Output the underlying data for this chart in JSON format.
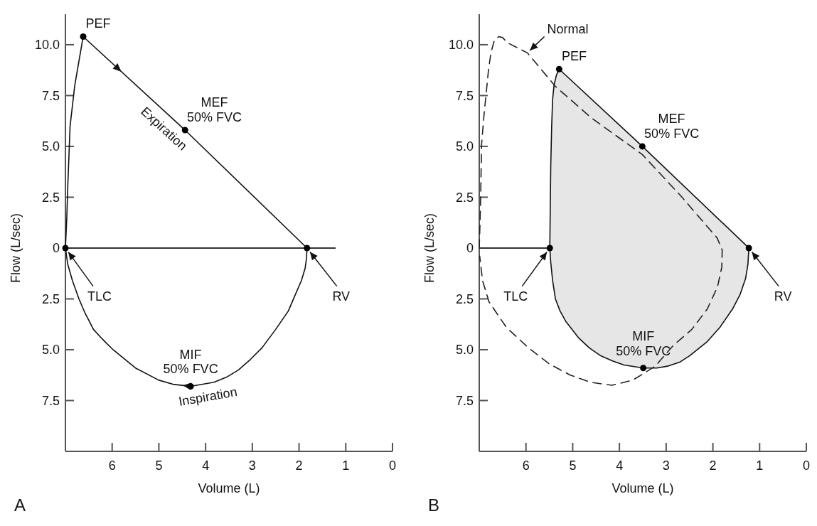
{
  "chart_data": [
    {
      "type": "line",
      "title": "A",
      "xlabel": "Volume (L)",
      "ylabel": "Flow (L/sec)",
      "xlim": [
        7,
        0
      ],
      "xticks": [
        6,
        5,
        4,
        3,
        2,
        1,
        0
      ],
      "ylim": [
        -10,
        11.5
      ],
      "yticks": [
        {
          "value": 10,
          "label": "10.0"
        },
        7.5,
        {
          "value": 5,
          "label": "5.0"
        },
        2.5,
        0,
        {
          "value": -2.5,
          "label": "2.5"
        },
        {
          "value": -5,
          "label": "5.0"
        },
        {
          "value": -7.5,
          "label": "7.5"
        }
      ],
      "ref_lines": [
        {
          "axis": "y",
          "value": 0,
          "color": "#333333"
        }
      ],
      "series": [
        {
          "color": "#111111",
          "x": [
            7,
            6.97,
            6.95,
            6.9,
            6.8,
            6.62,
            4.44,
            1.83
          ],
          "values": [
            0,
            1.5,
            3,
            6,
            8,
            10.4,
            5.8,
            0
          ]
        },
        {
          "color": "#111111",
          "x": [
            1.83,
            1.84,
            1.87,
            1.95,
            2.1,
            2.23,
            2.5,
            2.79,
            3.05,
            3.3,
            3.55,
            3.82,
            4.32,
            4.7,
            5,
            5.5,
            5.98,
            6.2,
            6.4,
            6.58,
            6.71,
            6.85,
            6.95,
            7
          ],
          "values": [
            0,
            -0.5,
            -1,
            -1.6,
            -2.4,
            -3.1,
            -4,
            -4.9,
            -5.5,
            -6,
            -6.35,
            -6.6,
            -6.8,
            -6.7,
            -6.5,
            -5.9,
            -5,
            -4.5,
            -4,
            -3.2,
            -2.5,
            -1.6,
            -0.8,
            0
          ]
        },
        {
          "type": "scatter",
          "marker": "circle",
          "color": "#000000",
          "x": [
            6.62,
            4.44,
            7,
            1.83,
            4.32
          ],
          "values": [
            10.4,
            5.8,
            0,
            0,
            -6.8
          ]
        }
      ],
      "annotations": [
        {
          "text": "PEF",
          "x": 6.62,
          "y": 10.4
        },
        {
          "text": "MEF\n50% FVC",
          "x": 4.44,
          "y": 5.8
        },
        {
          "text": "Expiration",
          "x": 4.7,
          "y": 6.35
        },
        {
          "text": "TLC",
          "x": 7,
          "y": 0
        },
        {
          "text": "RV",
          "x": 1.83,
          "y": 0
        },
        {
          "text": "MIF\n50% FVC",
          "x": 4.32,
          "y": -6.8
        },
        {
          "text": "Inspiration",
          "x": 4,
          "y": -6.67
        }
      ]
    },
    {
      "type": "line",
      "title": "B",
      "xlabel": "Volume (L)",
      "ylabel": "Flow (L/sec)",
      "xlim": [
        7,
        0
      ],
      "xticks": [
        6,
        5,
        4,
        3,
        2,
        1,
        0
      ],
      "ylim": [
        -10,
        11.5
      ],
      "yticks": [
        {
          "value": 10,
          "label": "10.0"
        },
        7.5,
        {
          "value": 5,
          "label": "5.0"
        },
        2.5,
        0,
        {
          "value": -2.5,
          "label": "2.5"
        },
        {
          "value": -5,
          "label": "5.0"
        },
        {
          "value": -7.5,
          "label": "7.5"
        }
      ],
      "ref_lines": [
        {
          "axis": "y",
          "value": 0,
          "color": "#333333"
        }
      ],
      "series": [
        {
          "type": "area",
          "color": "#e6e6e6",
          "x": [
            5.49,
            5.48,
            5.47,
            5.45,
            5.43,
            5.4,
            5.35,
            5.29,
            3.51,
            1.23
          ],
          "values": [
            0,
            2,
            4,
            6,
            7.3,
            8,
            8.5,
            8.8,
            5,
            0
          ]
        },
        {
          "type": "area",
          "color": "#e6e6e6",
          "x": [
            5.49,
            5.47,
            5.43,
            5.37,
            5.27,
            5.15,
            4.88,
            4.65,
            4.4,
            4.15,
            3.9,
            3.49,
            3.2,
            2.95,
            2.7,
            2.5,
            2.12,
            1.85,
            1.58,
            1.42,
            1.3,
            1.25,
            1.23
          ],
          "values": [
            0,
            -0.7,
            -1.6,
            -2.5,
            -3.1,
            -3.6,
            -4.4,
            -4.9,
            -5.3,
            -5.55,
            -5.75,
            -5.9,
            -5.9,
            -5.8,
            -5.6,
            -5.3,
            -4.6,
            -3.9,
            -3,
            -2.3,
            -1.5,
            -0.8,
            0
          ]
        },
        {
          "name": "Normal",
          "line_style": "dashed",
          "color": "#222222",
          "x": [
            7,
            6.98,
            6.97,
            6.95,
            6.9,
            6.85,
            6.8,
            6.75,
            6.68,
            6.58,
            6.5,
            6.4,
            5.97,
            5.37,
            4.6,
            3.51,
            2.68,
            2.1,
            1.91,
            1.8,
            1.81,
            1.9,
            2.12,
            2.45,
            2.85,
            3.23,
            3.5,
            3.72,
            4.16,
            4.62,
            5.05,
            5.5,
            5.95,
            6.42,
            6.79,
            6.93,
            6.96,
            6.99
          ],
          "values": [
            0,
            1.5,
            2.5,
            5.1,
            6.5,
            7.65,
            8.8,
            9.6,
            10.2,
            10.4,
            10.35,
            10.1,
            9.6,
            7.95,
            6.4,
            4.6,
            2.55,
            1,
            0.5,
            -0.1,
            -0.95,
            -1.9,
            -3,
            -4,
            -4.8,
            -5.8,
            -6.2,
            -6.5,
            -6.75,
            -6.6,
            -6.25,
            -5.7,
            -4.9,
            -3.9,
            -2.65,
            -1.6,
            -1,
            -0.4
          ]
        },
        {
          "type": "scatter",
          "marker": "circle",
          "color": "#000000",
          "x": [
            5.29,
            3.51,
            5.49,
            1.23,
            3.49
          ],
          "values": [
            8.8,
            5,
            0,
            0,
            -5.9
          ]
        }
      ],
      "annotations": [
        {
          "text": "PEF",
          "x": 5.29,
          "y": 8.8
        },
        {
          "text": "MEF\n50% FVC",
          "x": 3.51,
          "y": 5
        },
        {
          "text": "TLC",
          "x": 5.49,
          "y": 0
        },
        {
          "text": "RV",
          "x": 1.23,
          "y": 0
        },
        {
          "text": "MIF\n50% FVC",
          "x": 3.49,
          "y": -5.9
        }
      ]
    }
  ]
}
